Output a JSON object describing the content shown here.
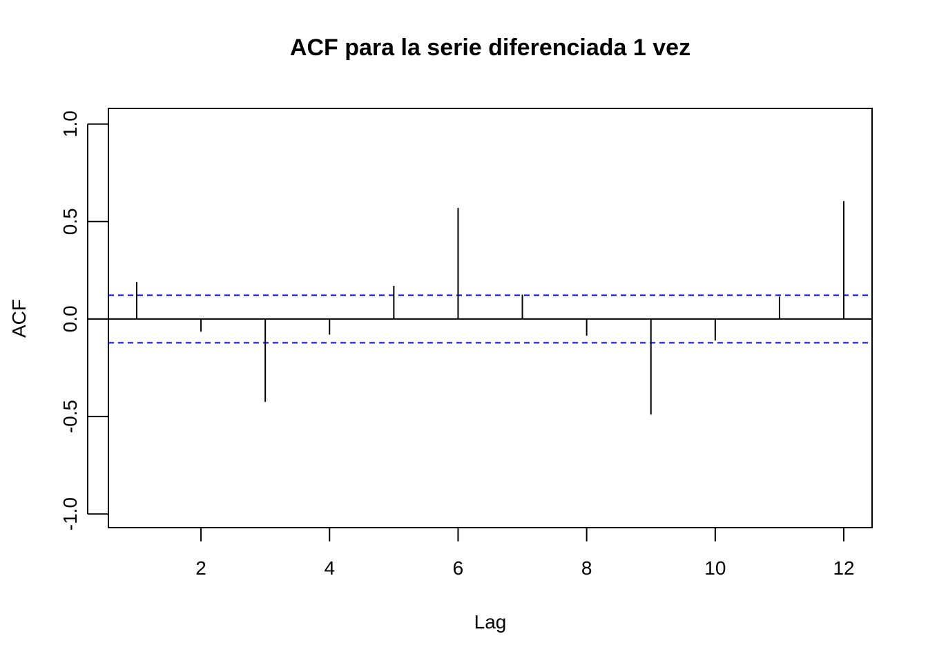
{
  "chart_data": {
    "type": "bar",
    "title": "ACF para la serie diferenciada 1 vez",
    "xlabel": "Lag",
    "ylabel": "ACF",
    "xlim": [
      0.56,
      12.44
    ],
    "ylim": [
      -1.07,
      1.08
    ],
    "x_ticks": [
      2,
      4,
      6,
      8,
      10,
      12
    ],
    "x_tick_labels": [
      "2",
      "4",
      "6",
      "8",
      "10",
      "12"
    ],
    "y_ticks": [
      -1.0,
      -0.5,
      0.0,
      0.5,
      1.0
    ],
    "y_tick_labels": [
      "-1.0",
      "-0.5",
      "0.0",
      "0.5",
      "1.0"
    ],
    "lags": [
      1,
      2,
      3,
      4,
      5,
      6,
      7,
      8,
      9,
      10,
      11,
      12
    ],
    "values": [
      0.19,
      -0.065,
      -0.425,
      -0.08,
      0.17,
      0.57,
      0.125,
      -0.085,
      -0.49,
      -0.11,
      0.115,
      0.605
    ],
    "confidence_band": 0.122,
    "colors": {
      "stems": "#000000",
      "band": "#0000ff",
      "axes": "#000000"
    },
    "grid": false,
    "legend": "none"
  }
}
